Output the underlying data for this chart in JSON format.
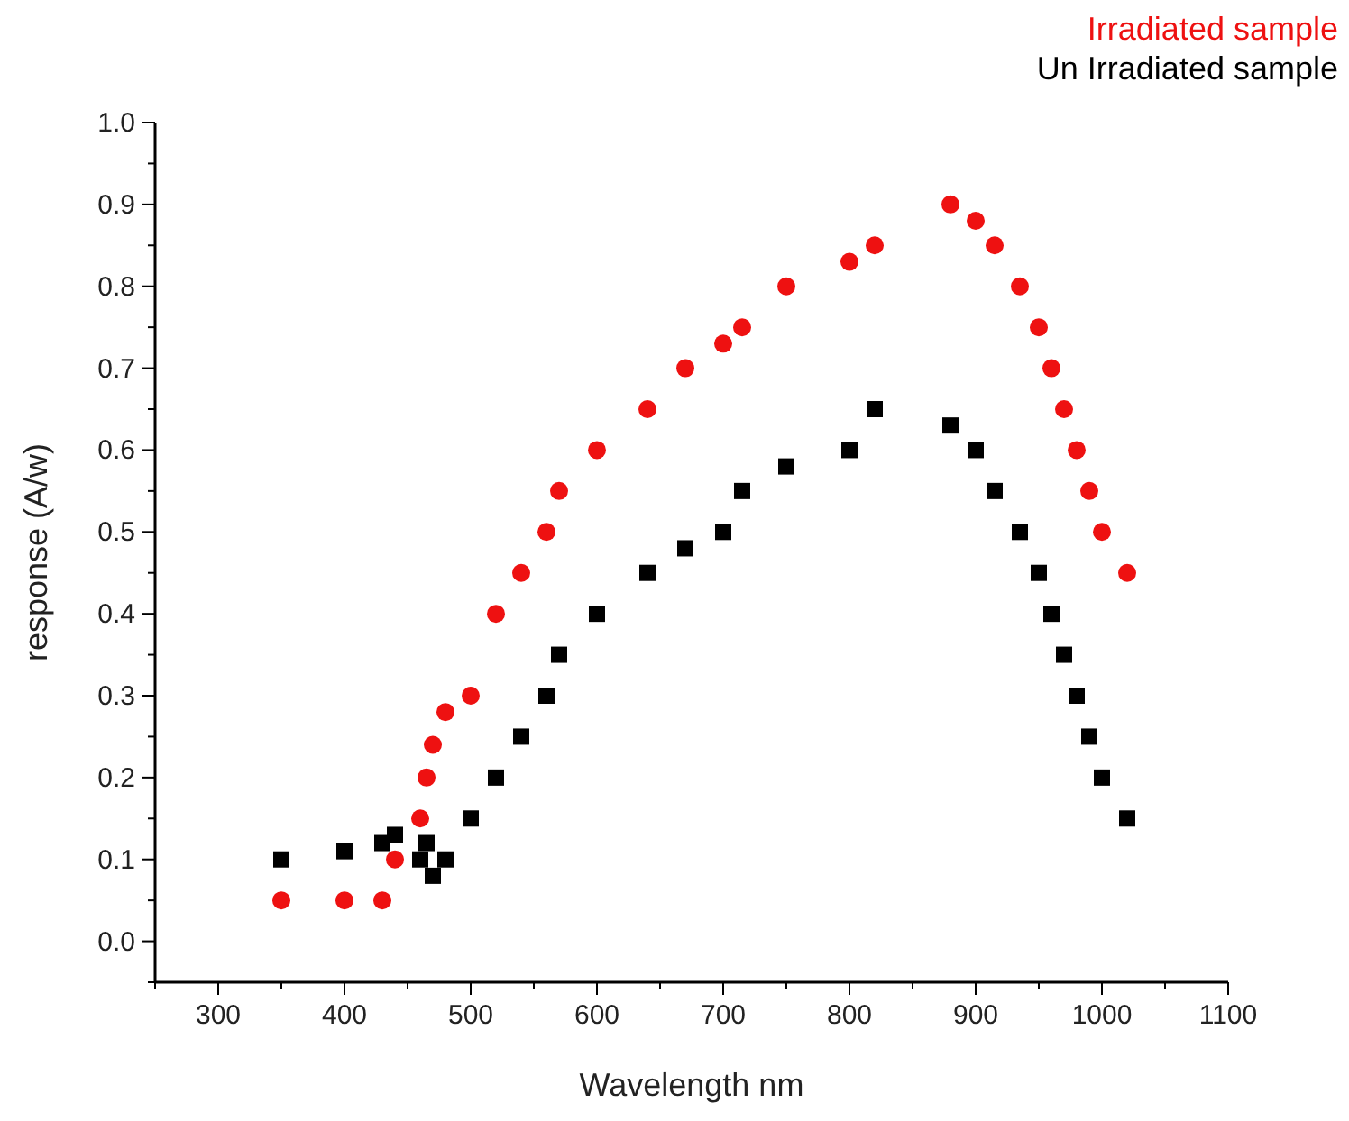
{
  "chart_data": {
    "type": "scatter",
    "xlabel": "Wavelength nm",
    "ylabel": "response (A/w)",
    "xlim": [
      250,
      1100
    ],
    "ylim": [
      -0.05,
      1.0
    ],
    "xticks": [
      {
        "value": 250,
        "label": null
      },
      300,
      {
        "value": 350,
        "label": null
      },
      400,
      {
        "value": 450,
        "label": null
      },
      500,
      {
        "value": 550,
        "label": null
      },
      600,
      {
        "value": 650,
        "label": null
      },
      700,
      {
        "value": 750,
        "label": null
      },
      800,
      {
        "value": 850,
        "label": null
      },
      900,
      {
        "value": 950,
        "label": null
      },
      1000,
      {
        "value": 1050,
        "label": null
      },
      1100
    ],
    "yticks": [
      {
        "value": -0.05,
        "label": null
      },
      {
        "value": 0,
        "label": "0.0"
      },
      {
        "value": 0.05,
        "label": null
      },
      0.1,
      {
        "value": 0.15,
        "label": null
      },
      0.2,
      {
        "value": 0.25,
        "label": null
      },
      0.3,
      {
        "value": 0.35,
        "label": null
      },
      0.4,
      {
        "value": 0.45,
        "label": null
      },
      0.5,
      {
        "value": 0.55,
        "label": null
      },
      0.6,
      {
        "value": 0.65,
        "label": null
      },
      0.7,
      {
        "value": 0.75,
        "label": null
      },
      0.8,
      {
        "value": 0.85,
        "label": null
      },
      0.9,
      {
        "value": 0.95,
        "label": null
      },
      {
        "value": 1,
        "label": "1.0"
      }
    ],
    "grid": false,
    "legend": "top right",
    "series": [
      {
        "name": "Irradiated sample",
        "color": "#ee1111",
        "marker": "circle",
        "x": [
          350,
          400,
          430,
          440,
          460,
          465,
          470,
          480,
          500,
          520,
          540,
          560,
          570,
          600,
          640,
          670,
          700,
          715,
          750,
          800,
          820,
          880,
          900,
          915,
          935,
          950,
          960,
          970,
          980,
          990,
          1000,
          1020
        ],
        "values": [
          0.05,
          0.05,
          0.05,
          0.1,
          0.15,
          0.2,
          0.24,
          0.28,
          0.3,
          0.4,
          0.45,
          0.5,
          0.55,
          0.6,
          0.65,
          0.7,
          0.73,
          0.75,
          0.8,
          0.83,
          0.85,
          0.9,
          0.88,
          0.85,
          0.8,
          0.75,
          0.7,
          0.65,
          0.6,
          0.55,
          0.5,
          0.45
        ]
      },
      {
        "name": "Un Irradiated sample",
        "color": "#000000",
        "marker": "square",
        "x": [
          350,
          400,
          430,
          440,
          460,
          465,
          470,
          480,
          500,
          520,
          540,
          560,
          570,
          600,
          640,
          670,
          700,
          715,
          750,
          800,
          820,
          880,
          900,
          915,
          935,
          950,
          960,
          970,
          980,
          990,
          1000,
          1020
        ],
        "values": [
          0.1,
          0.11,
          0.12,
          0.13,
          0.1,
          0.12,
          0.08,
          0.1,
          0.15,
          0.2,
          0.25,
          0.3,
          0.35,
          0.4,
          0.45,
          0.48,
          0.5,
          0.55,
          0.58,
          0.6,
          0.65,
          0.63,
          0.6,
          0.55,
          0.5,
          0.45,
          0.4,
          0.35,
          0.3,
          0.25,
          0.2,
          0.15
        ]
      }
    ]
  }
}
